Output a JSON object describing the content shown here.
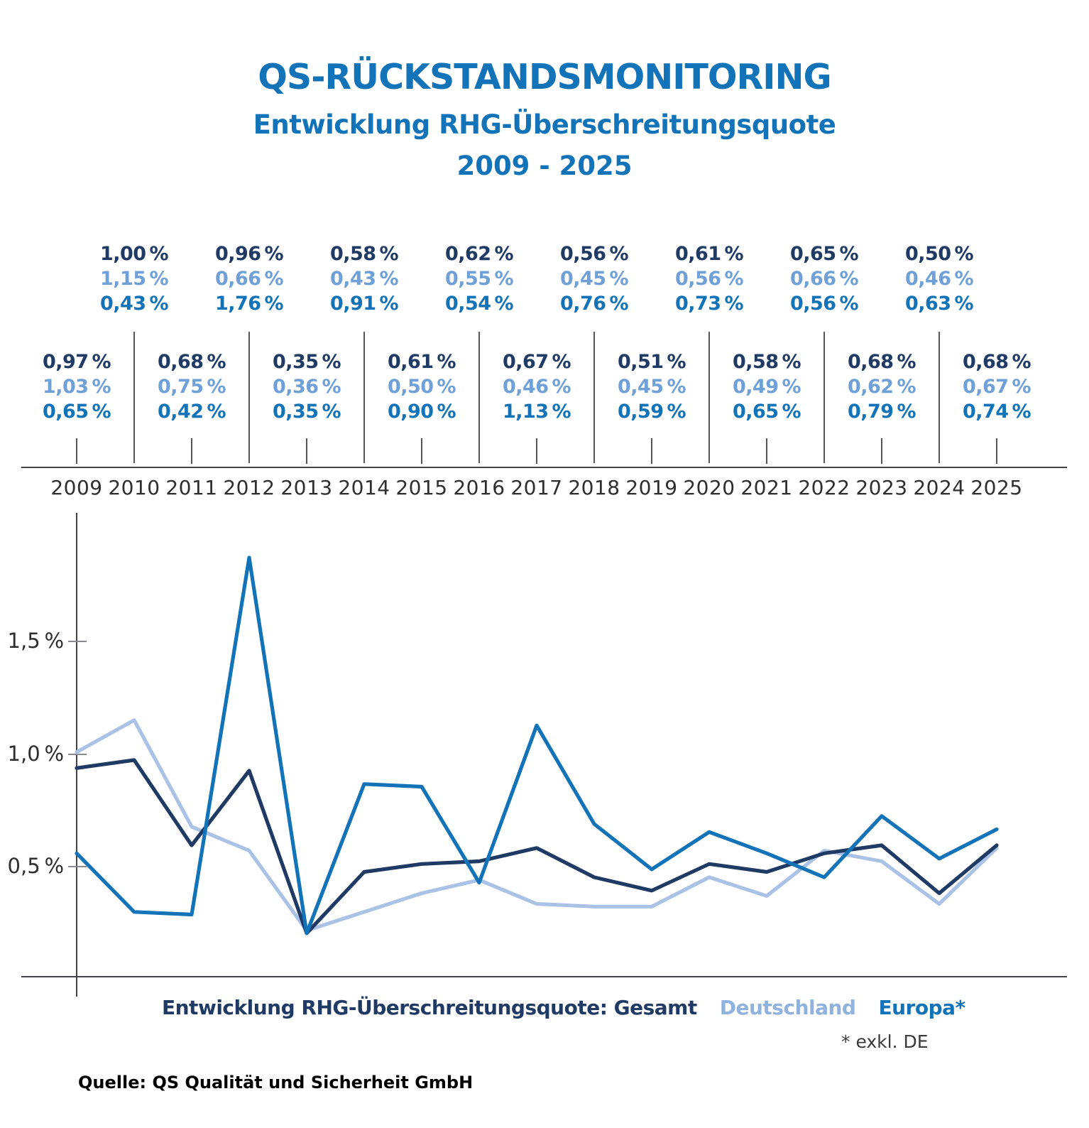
{
  "title": {
    "line1": "QS-RÜCKSTANDSMONITORING",
    "line2": "Entwicklung RHG-Überschreitungsquote",
    "line3": "2009 - 2025"
  },
  "colors": {
    "title": "#1373B8",
    "gesamt": "#1F3A64",
    "deutschland_label": "#6FA0D8",
    "deutschland_line": "#A9C2E6",
    "deutschland_legend": "#8FB2DF",
    "europa": "#1373B8"
  },
  "chart_data": {
    "type": "line",
    "categories": [
      "2009",
      "2010",
      "2011",
      "2012",
      "2013",
      "2014",
      "2015",
      "2016",
      "2017",
      "2018",
      "2019",
      "2020",
      "2021",
      "2022",
      "2023",
      "2024",
      "2025"
    ],
    "series": [
      {
        "key": "gesamt",
        "name": "Gesamt",
        "color": "#1F3A64",
        "values": [
          0.97,
          1.0,
          0.68,
          0.96,
          0.35,
          0.58,
          0.61,
          0.62,
          0.67,
          0.56,
          0.51,
          0.61,
          0.58,
          0.65,
          0.68,
          0.5,
          0.68
        ]
      },
      {
        "key": "deutschland",
        "name": "Deutschland",
        "color": "#A9C2E6",
        "values": [
          1.03,
          1.15,
          0.75,
          0.66,
          0.36,
          0.43,
          0.5,
          0.55,
          0.46,
          0.45,
          0.45,
          0.56,
          0.49,
          0.66,
          0.62,
          0.46,
          0.67
        ]
      },
      {
        "key": "europa",
        "name": "Europa*",
        "color": "#1373B8",
        "values": [
          0.65,
          0.43,
          0.42,
          1.76,
          0.35,
          0.91,
          0.9,
          0.54,
          1.13,
          0.76,
          0.59,
          0.73,
          0.65,
          0.56,
          0.79,
          0.63,
          0.74
        ]
      }
    ],
    "point_labels": [
      {
        "year": "2009",
        "gesamt": "0,97 %",
        "deutschland": "1,03 %",
        "europa": "0,65 %"
      },
      {
        "year": "2010",
        "gesamt": "1,00 %",
        "deutschland": "1,15 %",
        "europa": "0,43 %"
      },
      {
        "year": "2011",
        "gesamt": "0,68 %",
        "deutschland": "0,75 %",
        "europa": "0,42 %"
      },
      {
        "year": "2012",
        "gesamt": "0,96 %",
        "deutschland": "0,66 %",
        "europa": "1,76 %"
      },
      {
        "year": "2013",
        "gesamt": "0,35 %",
        "deutschland": "0,36 %",
        "europa": "0,35 %"
      },
      {
        "year": "2014",
        "gesamt": "0,58 %",
        "deutschland": "0,43 %",
        "europa": "0,91 %"
      },
      {
        "year": "2015",
        "gesamt": "0,61 %",
        "deutschland": "0,50 %",
        "europa": "0,90 %"
      },
      {
        "year": "2016",
        "gesamt": "0,62 %",
        "deutschland": "0,55 %",
        "europa": "0,54 %"
      },
      {
        "year": "2017",
        "gesamt": "0,67 %",
        "deutschland": "0,46 %",
        "europa": "1,13 %"
      },
      {
        "year": "2018",
        "gesamt": "0,56 %",
        "deutschland": "0,45 %",
        "europa": "0,76 %"
      },
      {
        "year": "2019",
        "gesamt": "0,51 %",
        "deutschland": "0,45 %",
        "europa": "0,59 %"
      },
      {
        "year": "2020",
        "gesamt": "0,61 %",
        "deutschland": "0,56 %",
        "europa": "0,73 %"
      },
      {
        "year": "2021",
        "gesamt": "0,58 %",
        "deutschland": "0,49 %",
        "europa": "0,65 %"
      },
      {
        "year": "2022",
        "gesamt": "0,65 %",
        "deutschland": "0,66 %",
        "europa": "0,56 %"
      },
      {
        "year": "2023",
        "gesamt": "0,68 %",
        "deutschland": "0,62 %",
        "europa": "0,79 %"
      },
      {
        "year": "2024",
        "gesamt": "0,50 %",
        "deutschland": "0,46 %",
        "europa": "0,63 %"
      },
      {
        "year": "2025",
        "gesamt": "0,68 %",
        "deutschland": "0,67 %",
        "europa": "0,74 %"
      }
    ],
    "yaxis": {
      "unit": "%",
      "tick_labels": [
        "1,5 %",
        "1,0 %",
        "0,5 %"
      ],
      "tick_values": [
        1.5,
        1.0,
        0.5
      ],
      "ylim": [
        0,
        2.0
      ]
    },
    "grid": false,
    "legend_position": "bottom"
  },
  "legend": {
    "gesamt_label": "Entwicklung RHG-Überschreitungsquote: Gesamt",
    "deutschland_label": "Deutschland",
    "europa_label": "Europa*",
    "footnote": "* exkl. DE"
  },
  "source": "Quelle: QS Qualität und Sicherheit GmbH"
}
